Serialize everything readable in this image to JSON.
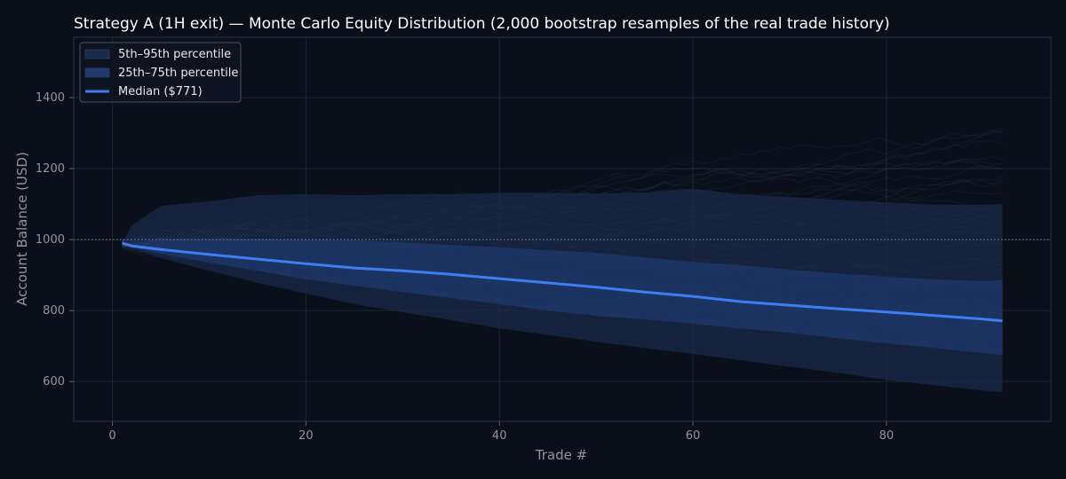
{
  "chart_data": {
    "type": "area",
    "title": "Strategy A (1H exit) — Monte Carlo Equity Distribution (2,000 bootstrap resamples of the real trade history)",
    "xlabel": "Trade #",
    "ylabel": "Account Balance (USD)",
    "xlim": [
      -4,
      97
    ],
    "ylim": [
      488,
      1570
    ],
    "xticks": [
      0,
      20,
      40,
      60,
      80
    ],
    "yticks": [
      600,
      800,
      1000,
      1200,
      1400
    ],
    "grid": true,
    "legend_position": "top-left",
    "reference_line": {
      "y": 1000,
      "style": "dotted"
    },
    "x": [
      1,
      2,
      5,
      10,
      15,
      20,
      25,
      30,
      35,
      40,
      45,
      50,
      55,
      60,
      65,
      70,
      75,
      80,
      85,
      90,
      92
    ],
    "series": [
      {
        "name": "5th–95th percentile",
        "kind": "band",
        "color": "#1a2a4a",
        "lower": [
          990,
          975,
          948,
          912,
          878,
          848,
          818,
          795,
          773,
          750,
          732,
          712,
          695,
          678,
          660,
          642,
          625,
          605,
          590,
          575,
          570
        ],
        "upper": [
          990,
          1040,
          1095,
          1108,
          1125,
          1128,
          1125,
          1128,
          1128,
          1132,
          1132,
          1130,
          1133,
          1143,
          1128,
          1120,
          1112,
          1105,
          1098,
          1098,
          1100
        ]
      },
      {
        "name": "25th–75th percentile",
        "kind": "band",
        "color": "#1f3a6e",
        "lower": [
          990,
          978,
          960,
          935,
          912,
          888,
          870,
          852,
          835,
          818,
          800,
          785,
          775,
          763,
          750,
          738,
          722,
          708,
          695,
          680,
          675
        ],
        "upper": [
          990,
          990,
          1002,
          1002,
          1002,
          1000,
          998,
          992,
          985,
          978,
          970,
          963,
          950,
          937,
          928,
          915,
          905,
          895,
          888,
          883,
          886
        ]
      },
      {
        "name": "Median ($771)",
        "kind": "line",
        "color": "#3d7ef0",
        "values": [
          990,
          982,
          972,
          958,
          945,
          932,
          920,
          912,
          902,
          890,
          878,
          866,
          852,
          840,
          825,
          815,
          805,
          796,
          786,
          776,
          771
        ]
      }
    ]
  }
}
